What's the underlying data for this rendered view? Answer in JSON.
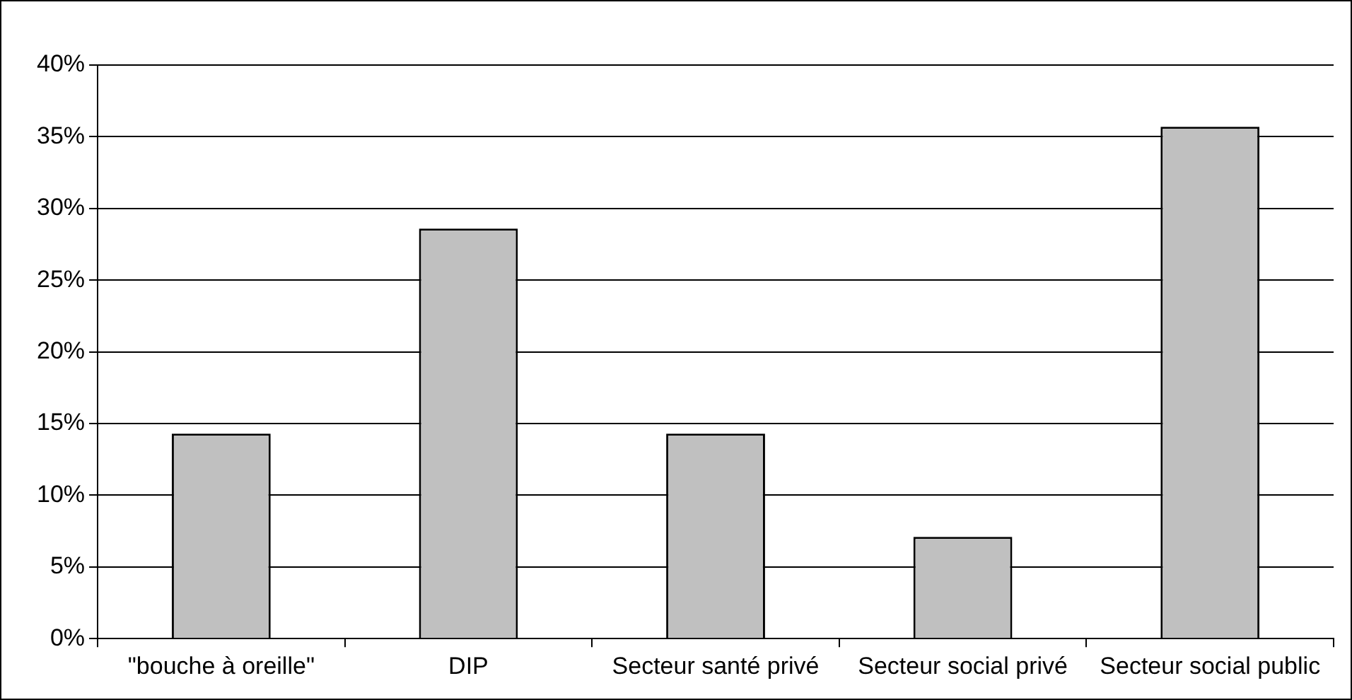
{
  "chart_data": {
    "type": "bar",
    "categories": [
      "\"bouche à oreille\"",
      "DIP",
      "Secteur santé privé",
      "Secteur social privé",
      "Secteur social public"
    ],
    "values": [
      14.3,
      28.6,
      14.3,
      7.1,
      35.7
    ],
    "color": "#c0c0c0",
    "ylim": [
      0,
      40
    ],
    "yticks": [
      {
        "value": 0,
        "label": "0%"
      },
      {
        "value": 5,
        "label": "5%"
      },
      {
        "value": 10,
        "label": "10%"
      },
      {
        "value": 15,
        "label": "15%"
      },
      {
        "value": 20,
        "label": "20%"
      },
      {
        "value": 25,
        "label": "25%"
      },
      {
        "value": 30,
        "label": "30%"
      },
      {
        "value": 35,
        "label": "35%"
      },
      {
        "value": 40,
        "label": "40%"
      }
    ],
    "grid": "y",
    "legend": false
  }
}
